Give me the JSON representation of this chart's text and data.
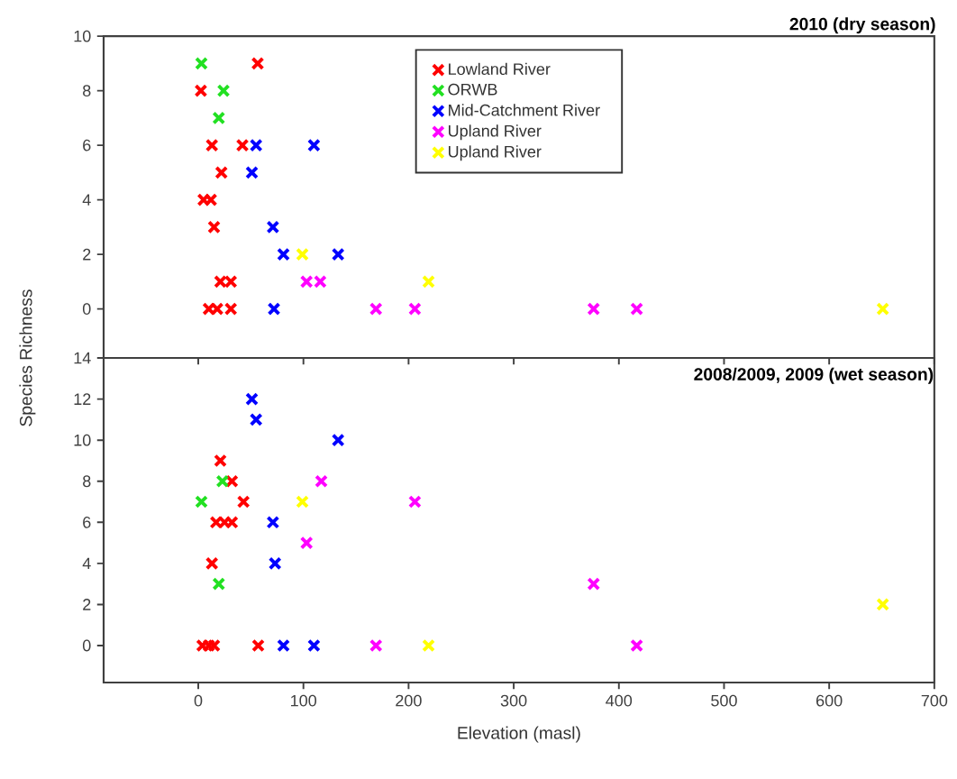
{
  "chart_data": [
    {
      "type": "scatter",
      "title": "2010 (dry season)",
      "ylabel": "Species Richness",
      "xlim": [
        -90,
        700
      ],
      "xticks": [
        0,
        100,
        200,
        300,
        400,
        500,
        600,
        700
      ],
      "ylim": [
        -1.8,
        10
      ],
      "yticks": [
        0,
        2,
        4,
        6,
        8,
        10
      ],
      "tick_labels": "y",
      "marker": "cross",
      "legend": "top",
      "series": [
        {
          "name": "Lowland River",
          "color": "#ff0000",
          "x": [
            56.5,
            2.5,
            13,
            42,
            22,
            5,
            12,
            15,
            21,
            31,
            10,
            18,
            31
          ],
          "values": [
            9,
            8,
            6,
            6,
            5,
            4,
            4,
            3,
            1,
            1,
            0,
            0,
            0
          ]
        },
        {
          "name": "ORWB",
          "color": "#22e022",
          "x": [
            3,
            24,
            19.5
          ],
          "values": [
            9,
            8,
            7
          ]
        },
        {
          "name": "Mid-Catchment River",
          "color": "#0000ff",
          "x": [
            55,
            110,
            51,
            71,
            81,
            133,
            72
          ],
          "values": [
            6,
            6,
            5,
            3,
            2,
            2,
            0
          ]
        },
        {
          "name": "Upland River",
          "color": "#ff00ff",
          "x": [
            103,
            116,
            169,
            206,
            376,
            417
          ],
          "values": [
            1,
            1,
            0,
            0,
            0,
            0
          ]
        },
        {
          "name": "Upland River",
          "color": "#ffff00",
          "x": [
            99,
            219,
            651
          ],
          "values": [
            2,
            1,
            0
          ]
        }
      ]
    },
    {
      "type": "scatter",
      "title": "2008/2009, 2009 (wet season)",
      "xlabel": "Elevation (masl)",
      "xlim": [
        -90,
        700
      ],
      "xticks": [
        0,
        100,
        200,
        300,
        400,
        500,
        600,
        700
      ],
      "ylim": [
        -1.8,
        14
      ],
      "yticks": [
        0,
        2,
        4,
        6,
        8,
        10,
        12,
        14
      ],
      "marker": "cross",
      "series": [
        {
          "color": "#ff0000",
          "x": [
            21,
            32,
            43,
            17,
            25,
            32,
            13,
            4,
            10,
            15,
            57
          ],
          "values": [
            9,
            8,
            7,
            6,
            6,
            6,
            4,
            0,
            0,
            0,
            0
          ]
        },
        {
          "color": "#22e022",
          "x": [
            23,
            3,
            19.5
          ],
          "values": [
            8,
            7,
            3
          ]
        },
        {
          "color": "#0000ff",
          "x": [
            51,
            55,
            133,
            71,
            73,
            81,
            110
          ],
          "values": [
            12,
            11,
            10,
            6,
            4,
            0,
            0
          ]
        },
        {
          "color": "#ff00ff",
          "x": [
            117,
            103,
            169,
            206,
            376,
            417
          ],
          "values": [
            8,
            5,
            0,
            7,
            3,
            0
          ]
        },
        {
          "color": "#ffff00",
          "x": [
            99,
            219,
            651
          ],
          "values": [
            7,
            0,
            2
          ]
        }
      ]
    }
  ]
}
